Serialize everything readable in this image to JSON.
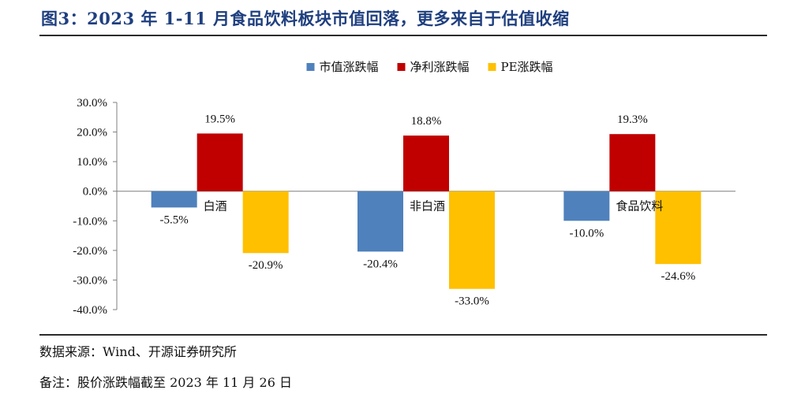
{
  "header": {
    "title": "图3：2023 年 1-11 月食品饮料板块市值回落，更多来自于估值收缩"
  },
  "footer": {
    "source": "数据来源：Wind、开源证券研究所",
    "note": "备注：股价涨跌幅截至 2023 年 11 月 26 日"
  },
  "chart_data": {
    "type": "bar",
    "categories": [
      "白酒",
      "非白酒",
      "食品饮料"
    ],
    "series": [
      {
        "name": "市值涨跌幅",
        "color": "#4f81bd",
        "values": [
          -5.5,
          -20.4,
          -10.0
        ],
        "labels": [
          "-5.5%",
          "-20.4%",
          "-10.0%"
        ]
      },
      {
        "name": "净利涨跌幅",
        "color": "#c00000",
        "values": [
          19.5,
          18.8,
          19.3
        ],
        "labels": [
          "19.5%",
          "18.8%",
          "19.3%"
        ]
      },
      {
        "name": "PE涨跌幅",
        "color": "#ffc000",
        "values": [
          -20.9,
          -33.0,
          -24.6
        ],
        "labels": [
          "-20.9%",
          "-33.0%",
          "-24.6%"
        ]
      }
    ],
    "ylim": [
      -40,
      30
    ],
    "yticks": [
      "30.0%",
      "20.0%",
      "10.0%",
      "0.0%",
      "-10.0%",
      "-20.0%",
      "-30.0%",
      "-40.0%"
    ],
    "ytick_values": [
      30,
      20,
      10,
      0,
      -10,
      -20,
      -30,
      -40
    ],
    "legend_position": "top-center",
    "grid": false
  }
}
